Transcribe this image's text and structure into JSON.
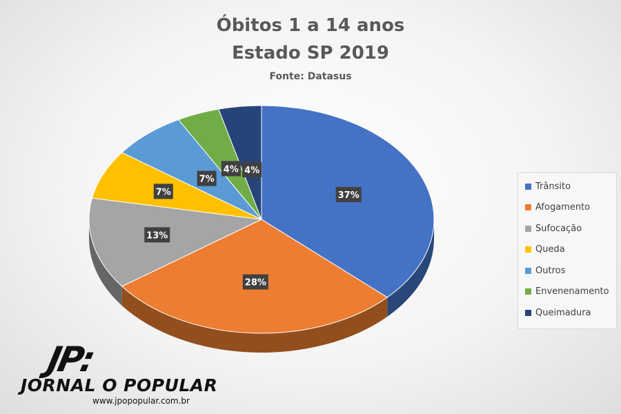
{
  "chart_data": {
    "type": "pie",
    "title": "Óbitos 1 a 14 anos",
    "subtitle": "Estado SP 2019",
    "source": "Fonte: Datasus",
    "labels": [
      "Trânsito",
      "Afogamento",
      "Sufocação",
      "Queda",
      "Outros",
      "Envenenamento",
      "Queimadura"
    ],
    "values": [
      37,
      28,
      13,
      7,
      7,
      4,
      4
    ],
    "data_labels": [
      "37%",
      "28%",
      "13%",
      "7%",
      "7%",
      "4%",
      "4%"
    ],
    "colors": [
      "#4472C4",
      "#ED7D31",
      "#A5A5A5",
      "#FFC000",
      "#5B9BD5",
      "#70AD47",
      "#264478"
    ],
    "legend_position": "right"
  },
  "logo": {
    "mark": "JP:",
    "name": "JORNAL O POPULAR",
    "url": "www.jpopopular.com.br"
  }
}
